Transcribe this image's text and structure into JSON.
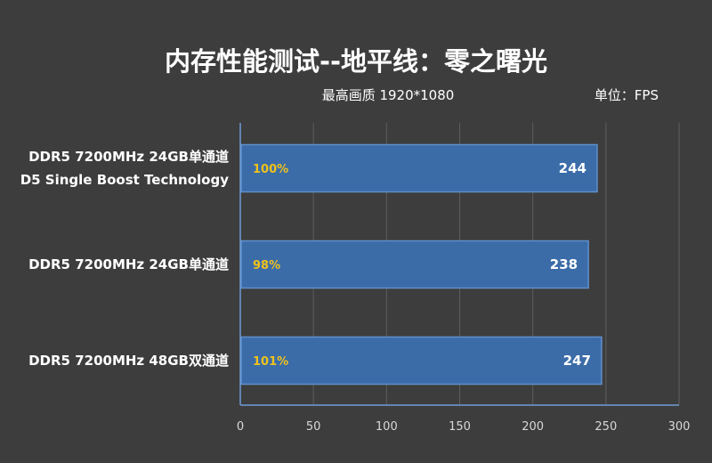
{
  "chart_data": {
    "type": "bar",
    "orientation": "horizontal",
    "title": "内存性能测试--地平线：零之曙光",
    "subtitle": "最高画质 1920*1080",
    "unit": "单位：FPS",
    "categories": [
      [
        "DDR5 7200MHz 24GB单通道",
        "D5 Single Boost Technology"
      ],
      [
        "DDR5 7200MHz 24GB单通道"
      ],
      [
        "DDR5 7200MHz 48GB双通道"
      ]
    ],
    "values": [
      244,
      238,
      247
    ],
    "percent_labels": [
      "100%",
      "98%",
      "101%"
    ],
    "xlim": [
      0,
      300
    ],
    "xticks": [
      0,
      50,
      100,
      150,
      200,
      250,
      300
    ],
    "grid": true,
    "colors": {
      "bar": "#3b6ca8",
      "bar_edge": "#5f8fcc",
      "percent": "#f0c21b",
      "background": "#3d3d3d"
    }
  }
}
